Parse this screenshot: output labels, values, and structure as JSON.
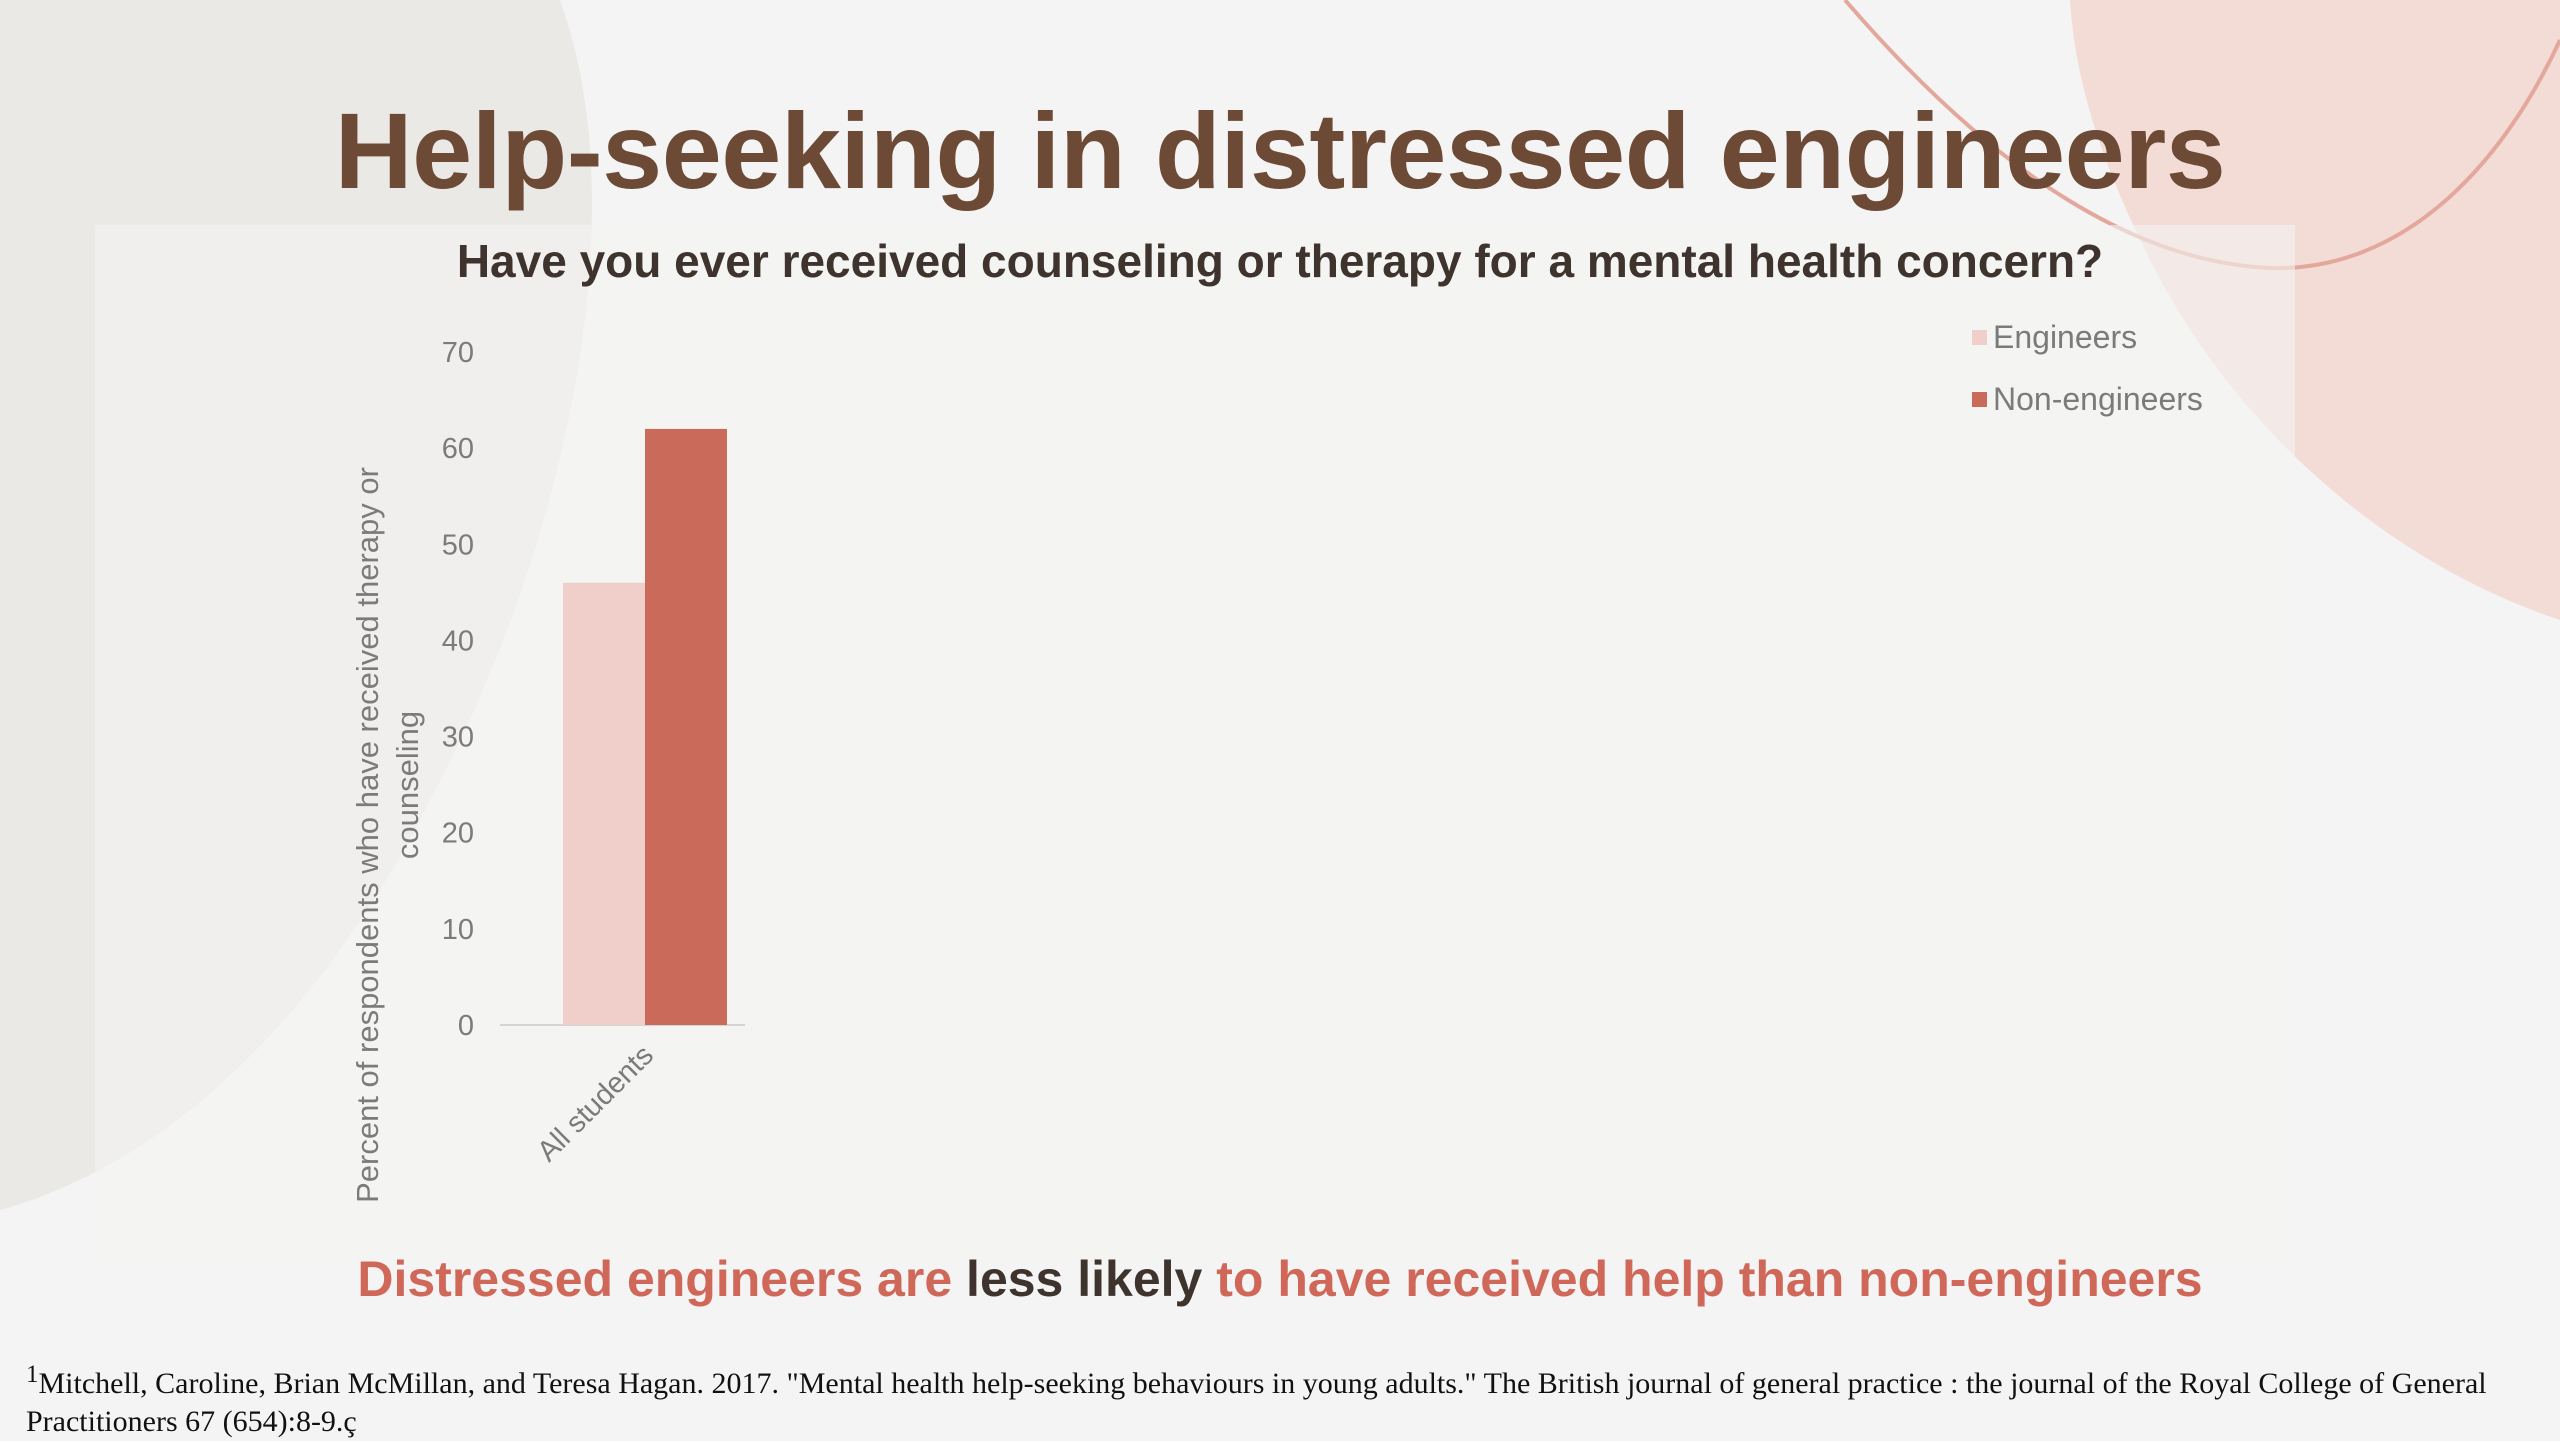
{
  "slide": {
    "title": "Help-seeking in distressed engineers",
    "conclusion": {
      "part1": "Distressed engineers are",
      "part2": "less likely",
      "part3": "to have received help than non-engineers"
    },
    "citation_sup": "1",
    "citation": "Mitchell, Caroline, Brian McMillan, and Teresa Hagan. 2017. \"Mental health help-seeking behaviours in young adults.\" The British journal of general practice : the journal of the Royal College of General Practitioners 67 (654):8-9.ç"
  },
  "colors": {
    "title": "#6d4a35",
    "accent": "#d0685a",
    "engineers": "#f0cfca",
    "non_engineers": "#c96a5b"
  },
  "chart_data": {
    "type": "bar",
    "title": "Have you ever received counseling or therapy for a mental health concern?",
    "categories": [
      "All students"
    ],
    "series": [
      {
        "name": "Engineers",
        "values": [
          46
        ]
      },
      {
        "name": "Non-engineers",
        "values": [
          62
        ]
      }
    ],
    "xlabel": "",
    "ylabel": "Percent of respondents who have received therapy or counseling",
    "ylim": [
      0,
      70
    ],
    "yticks": [
      "0",
      "10",
      "20",
      "30",
      "40",
      "50",
      "60",
      "70"
    ],
    "legend": "top-right",
    "grid": false
  }
}
